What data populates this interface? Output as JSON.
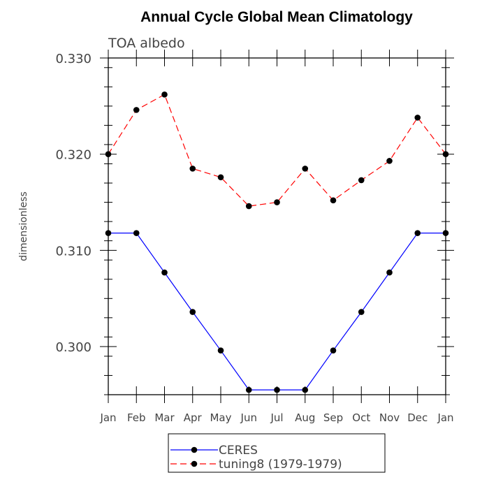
{
  "chart_data": {
    "type": "line",
    "title": "Annual Cycle Global Mean Climatology",
    "subtitle": "TOA albedo",
    "ylabel": "dimensionless",
    "xlabel": "",
    "categories": [
      "Jan",
      "Feb",
      "Mar",
      "Apr",
      "May",
      "Jun",
      "Jul",
      "Aug",
      "Sep",
      "Oct",
      "Nov",
      "Dec",
      "Jan"
    ],
    "ylim": [
      0.295,
      0.33
    ],
    "yticks": [
      0.3,
      0.31,
      0.32,
      0.33
    ],
    "ytick_labels": [
      "0.300",
      "0.310",
      "0.320",
      "0.330"
    ],
    "series": [
      {
        "name": "CERES",
        "color": "#0000ff",
        "dash": "solid",
        "values": [
          0.3118,
          0.3118,
          0.3077,
          0.3036,
          0.2996,
          0.2955,
          0.2955,
          0.2955,
          0.2996,
          0.3036,
          0.3077,
          0.3118,
          0.3118
        ]
      },
      {
        "name": "tuning8 (1979-1979)",
        "color": "#ff0000",
        "dash": "dashed",
        "values": [
          0.32,
          0.3246,
          0.3262,
          0.3185,
          0.3176,
          0.3146,
          0.315,
          0.3185,
          0.3152,
          0.3173,
          0.3193,
          0.3238,
          0.32
        ]
      }
    ],
    "legend_position": "bottom-center",
    "grid": false
  }
}
